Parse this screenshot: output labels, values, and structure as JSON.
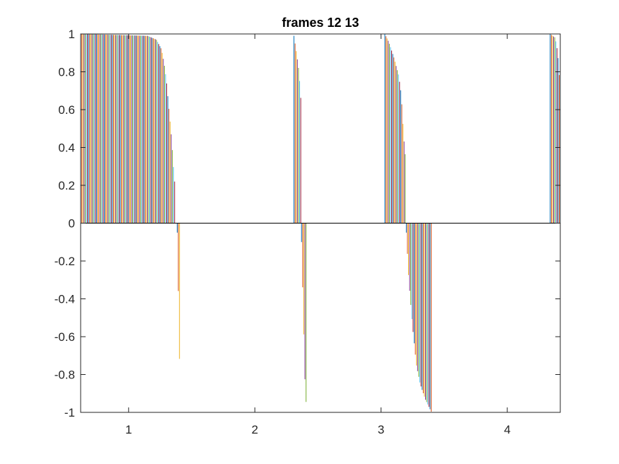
{
  "chart_data": {
    "type": "bar",
    "title": "frames 12 13",
    "xlabel": "",
    "ylabel": "",
    "xlim": [
      0.62,
      4.42
    ],
    "ylim": [
      -1,
      1
    ],
    "x_ticks": [
      1,
      2,
      3,
      4
    ],
    "y_ticks": [
      -1,
      -0.8,
      -0.6,
      -0.4,
      -0.2,
      0,
      0.2,
      0.4,
      0.6,
      0.8,
      1
    ],
    "grid": false,
    "legend": "none",
    "bar_groups": [
      {
        "name": "group-1-positive",
        "x_start": 0.62,
        "x_end": 1.37,
        "profile": [
          [
            0.62,
            1.0
          ],
          [
            0.9,
            0.995
          ],
          [
            1.15,
            0.99
          ],
          [
            1.22,
            0.97
          ],
          [
            1.26,
            0.92
          ],
          [
            1.28,
            0.85
          ],
          [
            1.3,
            0.75
          ],
          [
            1.32,
            0.6
          ],
          [
            1.34,
            0.45
          ],
          [
            1.36,
            0.25
          ],
          [
            1.37,
            0.18
          ]
        ]
      },
      {
        "name": "group-1-negative",
        "x_start": 1.385,
        "x_end": 1.41,
        "profile": [
          [
            1.385,
            -0.05
          ],
          [
            1.39,
            -0.2
          ],
          [
            1.395,
            -0.4
          ],
          [
            1.4,
            -0.6
          ],
          [
            1.405,
            -0.8
          ],
          [
            1.41,
            -1.0
          ]
        ]
      },
      {
        "name": "group-2-positive",
        "x_start": 2.31,
        "x_end": 2.37,
        "profile": [
          [
            2.31,
            0.99
          ],
          [
            2.33,
            0.9
          ],
          [
            2.35,
            0.8
          ],
          [
            2.36,
            0.7
          ],
          [
            2.37,
            0.6
          ]
        ]
      },
      {
        "name": "group-2-negative",
        "x_start": 2.37,
        "x_end": 2.41,
        "profile": [
          [
            2.37,
            -0.1
          ],
          [
            2.385,
            -0.5
          ],
          [
            2.395,
            -0.8
          ],
          [
            2.41,
            -1.0
          ]
        ]
      },
      {
        "name": "group-3-positive",
        "x_start": 3.03,
        "x_end": 3.2,
        "profile": [
          [
            3.03,
            1.0
          ],
          [
            3.06,
            0.96
          ],
          [
            3.1,
            0.88
          ],
          [
            3.14,
            0.78
          ],
          [
            3.16,
            0.68
          ],
          [
            3.18,
            0.45
          ],
          [
            3.2,
            0.3
          ]
        ]
      },
      {
        "name": "group-3-negative",
        "x_start": 3.2,
        "x_end": 3.4,
        "profile": [
          [
            3.2,
            -0.05
          ],
          [
            3.22,
            -0.3
          ],
          [
            3.25,
            -0.55
          ],
          [
            3.28,
            -0.75
          ],
          [
            3.31,
            -0.85
          ],
          [
            3.35,
            -0.93
          ],
          [
            3.4,
            -1.0
          ]
        ]
      },
      {
        "name": "group-4-positive",
        "x_start": 4.34,
        "x_end": 4.42,
        "profile": [
          [
            4.34,
            1.0
          ],
          [
            4.38,
            0.98
          ],
          [
            4.4,
            0.9
          ],
          [
            4.42,
            0.7
          ]
        ]
      }
    ],
    "series_colors": [
      "#0072BD",
      "#D95319",
      "#EDB120",
      "#7E2F8E",
      "#77AC30",
      "#4DBEEE",
      "#A2142F"
    ]
  }
}
